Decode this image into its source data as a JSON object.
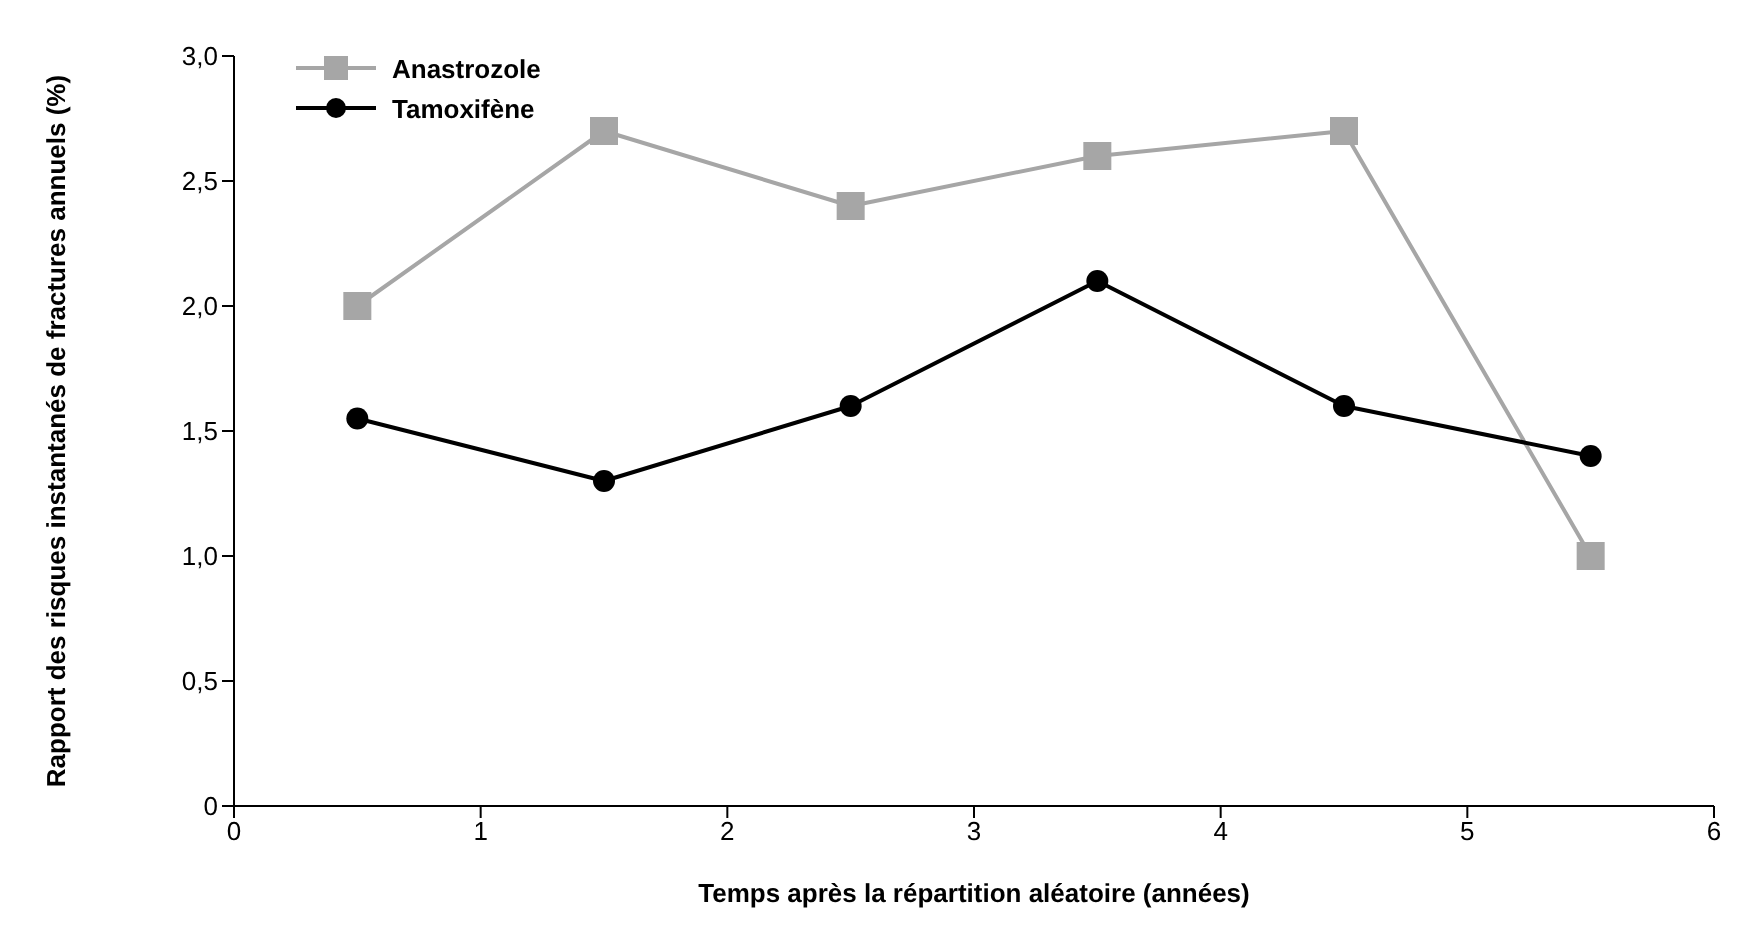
{
  "chart_data": {
    "type": "line",
    "xlabel": "Temps après la répartition aléatoire (années)",
    "ylabel": "Rapport des risques instantanés de fractures annuels (%)",
    "x": [
      0.5,
      1.5,
      2.5,
      3.5,
      4.5,
      5.5
    ],
    "series": [
      {
        "name": "Anastrozole",
        "color": "#a6a6a6",
        "marker": "square",
        "values": [
          2.0,
          2.7,
          2.4,
          2.6,
          2.7,
          1.0
        ]
      },
      {
        "name": "Tamoxifène",
        "color": "#000000",
        "marker": "circle",
        "values": [
          1.55,
          1.3,
          1.6,
          2.1,
          1.6,
          1.4
        ]
      }
    ],
    "xlim": [
      0,
      6
    ],
    "xticks": [
      0,
      1,
      2,
      3,
      4,
      5,
      6
    ],
    "ylim": [
      0,
      3
    ],
    "yticks": [
      0,
      {
        "value": 0.5,
        "label": "0,5"
      },
      {
        "value": 1,
        "label": "1,0"
      },
      {
        "value": 1.5,
        "label": "1,5"
      },
      {
        "value": 2,
        "label": "2,0"
      },
      {
        "value": 2.5,
        "label": "2,5"
      },
      {
        "value": 3,
        "label": "3,0"
      }
    ],
    "grid": false,
    "legend": "top left",
    "line_style": "solid"
  }
}
